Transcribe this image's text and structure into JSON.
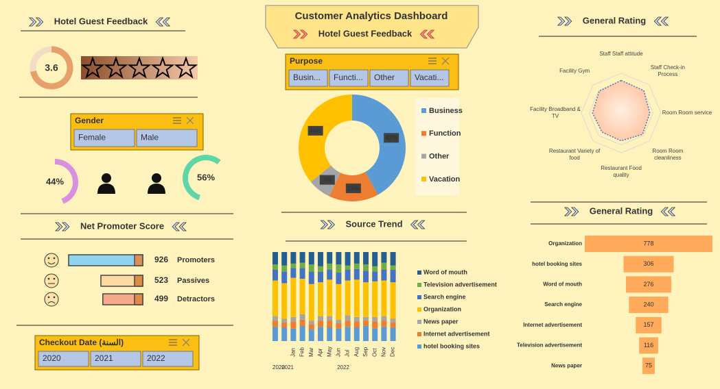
{
  "header": {
    "title": "Customer Analytics Dashboard",
    "subtitle": "Hotel Guest Feedback"
  },
  "feedback": {
    "title": "Hotel Guest Feedback",
    "rating": 3.6,
    "color": "#e8a06a"
  },
  "gender": {
    "slicer": {
      "title": "Gender",
      "items": [
        "Female",
        "Male"
      ]
    },
    "values": [
      44,
      56
    ],
    "value_labels": [
      "44%",
      "56%"
    ],
    "colors": [
      "#d98ee0",
      "#5ed6a6"
    ]
  },
  "nps": {
    "title": "Net Promoter Score",
    "categories": [
      "Promoters",
      "Passives",
      "Detractors"
    ],
    "values": [
      926,
      523,
      499
    ],
    "colors": [
      "#8fd3f0",
      "#fbd9a0",
      "#f5a88a"
    ]
  },
  "checkout": {
    "title": "Checkout Date (السنة)",
    "items": [
      "2020",
      "2021",
      "2022"
    ]
  },
  "purpose": {
    "title": "Purpose",
    "items": [
      "Busin...",
      "Functi...",
      "Other",
      "Vacati..."
    ]
  },
  "chart_data": [
    {
      "type": "donut",
      "categories": [
        "Business",
        "Function",
        "Other",
        "Vacation"
      ],
      "values": [
        42,
        15,
        7,
        36
      ],
      "value_labels": [
        "42%",
        "15%",
        "7%",
        "36%"
      ],
      "colors": [
        "#5b9bd5",
        "#ed7d31",
        "#a5a5a5",
        "#ffc000"
      ]
    },
    {
      "type": "bar",
      "stacked": true,
      "title": "Source Trend",
      "categories": [
        null,
        null,
        "Jan",
        "Feb",
        "Mar",
        "Apr",
        "May",
        "Jun",
        "Jul",
        "Aug",
        "Sep",
        "Oct",
        "Nov",
        "Dec"
      ],
      "groups": [
        "2020",
        "2021",
        "2022"
      ],
      "ylim": [
        0,
        100
      ],
      "series": [
        {
          "name": "Word of mouth",
          "color": "#255e91",
          "values": [
            14,
            15,
            13,
            12,
            14,
            16,
            13,
            14,
            15,
            13,
            14,
            16,
            12,
            15
          ]
        },
        {
          "name": "Television advertisement",
          "color": "#70ad47",
          "values": [
            6,
            7,
            5,
            6,
            8,
            6,
            7,
            9,
            5,
            6,
            7,
            6,
            8,
            5
          ]
        },
        {
          "name": "Search engine",
          "color": "#4472c4",
          "values": [
            12,
            13,
            11,
            12,
            14,
            12,
            11,
            13,
            12,
            12,
            13,
            11,
            12,
            14
          ]
        },
        {
          "name": "Organization",
          "color": "#ffc000",
          "values": [
            40,
            40,
            44,
            40,
            41,
            38,
            41,
            40,
            39,
            42,
            39,
            40,
            40,
            41
          ]
        },
        {
          "name": "News paper",
          "color": "#a5a5a5",
          "values": [
            5,
            4,
            5,
            6,
            4,
            5,
            5,
            4,
            6,
            5,
            4,
            5,
            5,
            4
          ]
        },
        {
          "name": "Internet advertisement",
          "color": "#ed7d31",
          "values": [
            7,
            6,
            8,
            7,
            6,
            7,
            8,
            6,
            7,
            7,
            6,
            8,
            7,
            6
          ]
        },
        {
          "name": "hotel booking sites",
          "color": "#5b9bd5",
          "values": [
            16,
            15,
            14,
            17,
            13,
            16,
            15,
            14,
            16,
            15,
            17,
            14,
            16,
            15
          ]
        }
      ]
    },
    {
      "type": "radar",
      "title": "General Rating",
      "categories": [
        "Staff Staff attitude",
        "Staff Check-in Process",
        "Room Room service",
        "Room Room cleanliness",
        "Restaurant Food quality",
        "Restaurant Variety of food",
        "Facility Broadband & TV",
        "Facility Gym"
      ],
      "values": [
        4.1,
        4.0,
        3.6,
        3.8,
        3.5,
        3.4,
        3.6,
        3.9
      ],
      "ylim": [
        0,
        5
      ],
      "yticks": [
        1,
        2,
        3,
        4,
        5
      ],
      "color": "#4472c4",
      "fill": "#ffc8a8"
    },
    {
      "type": "funnel",
      "title": "General Rating",
      "categories": [
        "Organization",
        "hotel booking sites",
        "Word of mouth",
        "Search engine",
        "Internet advertisement",
        "Television advertisement",
        "News paper"
      ],
      "values": [
        778,
        306,
        276,
        240,
        157,
        116,
        75
      ],
      "color": "#ffab5b"
    }
  ]
}
